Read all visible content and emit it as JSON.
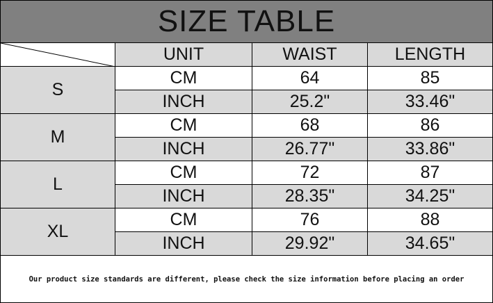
{
  "title": "SIZE TABLE",
  "headers": [
    "UNIT",
    "WAIST",
    "LENGTH"
  ],
  "rows": [
    {
      "size": "S",
      "cm": {
        "unit": "CM",
        "waist": "64",
        "length": "85"
      },
      "inch": {
        "unit": "INCH",
        "waist": "25.2\"",
        "length": "33.46\""
      }
    },
    {
      "size": "M",
      "cm": {
        "unit": "CM",
        "waist": "68",
        "length": "86"
      },
      "inch": {
        "unit": "INCH",
        "waist": "26.77\"",
        "length": "33.86\""
      }
    },
    {
      "size": "L",
      "cm": {
        "unit": "CM",
        "waist": "72",
        "length": "87"
      },
      "inch": {
        "unit": "INCH",
        "waist": "28.35\"",
        "length": "34.25\""
      }
    },
    {
      "size": "XL",
      "cm": {
        "unit": "CM",
        "waist": "76",
        "length": "88"
      },
      "inch": {
        "unit": "INCH",
        "waist": "29.92\"",
        "length": "34.65\""
      }
    }
  ],
  "note": "Our product size standards are different, please check the size information before placing an order",
  "colors": {
    "title_bg": "#808080",
    "cell_gray": "#d9d9d9"
  }
}
